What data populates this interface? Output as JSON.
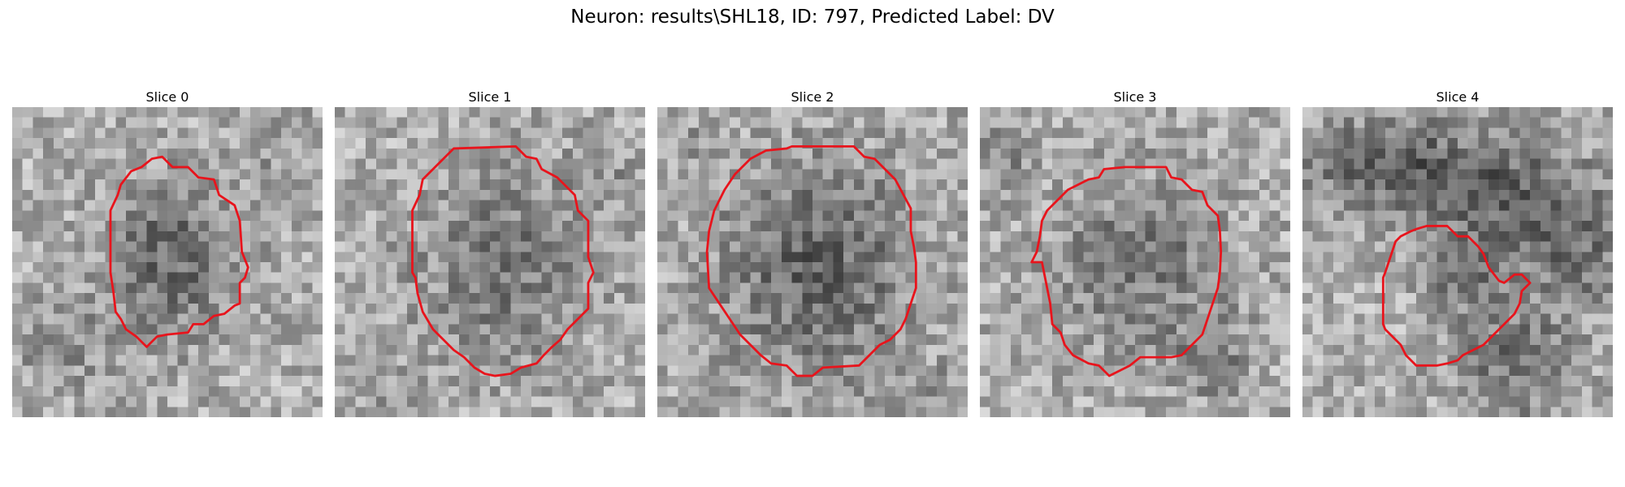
{
  "figure": {
    "title": "Neuron: results\\SHL18, ID: 797, Predicted Label: DV"
  },
  "panels": [
    {
      "title": "Slice 0"
    },
    {
      "title": "Slice 1"
    },
    {
      "title": "Slice 2"
    },
    {
      "title": "Slice 3"
    },
    {
      "title": "Slice 4"
    }
  ],
  "style": {
    "contour_color": "#e8141c"
  }
}
